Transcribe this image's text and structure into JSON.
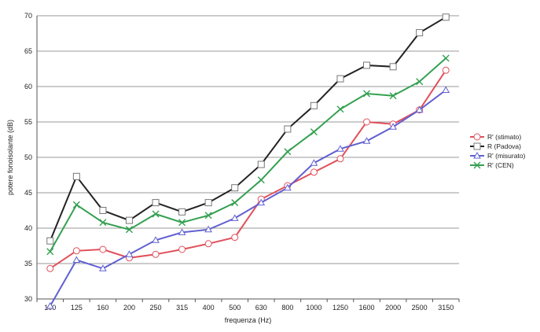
{
  "chart_data": {
    "type": "line",
    "xlabel": "frequenza (Hz)",
    "ylabel": "potere fonoisolante (dB)",
    "ylim": [
      30,
      70
    ],
    "yticks": [
      30,
      35,
      40,
      45,
      50,
      55,
      60,
      65,
      70
    ],
    "grid": "horizontal",
    "legend_position": "right",
    "categories": [
      "100",
      "125",
      "160",
      "200",
      "250",
      "315",
      "400",
      "500",
      "630",
      "800",
      "1000",
      "1250",
      "1600",
      "2000",
      "2500",
      "3150"
    ],
    "series": [
      {
        "name": "R' (stimato)",
        "color": "#e0505a",
        "marker": "circle",
        "values": [
          34.3,
          36.8,
          37.0,
          35.8,
          36.3,
          37.0,
          37.8,
          38.7,
          44.1,
          46.0,
          47.9,
          49.8,
          55.0,
          54.7,
          56.7,
          62.3
        ]
      },
      {
        "name": "R (Padova)",
        "color": "#222222",
        "marker": "square",
        "values": [
          38.2,
          47.3,
          42.5,
          41.1,
          43.6,
          42.3,
          43.6,
          45.7,
          49.0,
          54.0,
          57.3,
          61.1,
          63.0,
          62.8,
          67.6,
          69.8
        ]
      },
      {
        "name": "R' (misurato)",
        "color": "#6060d0",
        "marker": "triangle",
        "values": [
          29.0,
          35.5,
          34.3,
          36.3,
          38.3,
          39.4,
          39.8,
          41.4,
          43.6,
          45.7,
          49.2,
          51.2,
          52.3,
          54.3,
          56.7,
          59.5
        ]
      },
      {
        "name": "R' (CEN)",
        "color": "#33a050",
        "marker": "x",
        "values": [
          36.7,
          43.3,
          40.8,
          39.8,
          42.0,
          40.8,
          41.8,
          43.6,
          46.8,
          50.8,
          53.6,
          56.8,
          59.0,
          58.7,
          60.7,
          64.0
        ]
      }
    ]
  }
}
